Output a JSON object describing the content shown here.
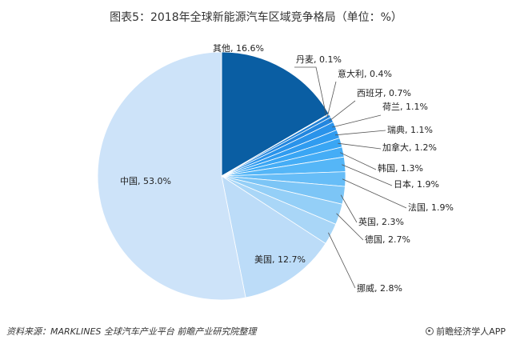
{
  "chart_data": {
    "type": "pie",
    "title": "图表5：2018年全球新能源汽车区域竞争格局（单位：%）",
    "unit": "%",
    "slices": [
      {
        "label": "其他",
        "value": 16.6,
        "color": "#0a5ea3"
      },
      {
        "label": "丹麦",
        "value": 0.1,
        "color": "#1e73c4"
      },
      {
        "label": "意大利",
        "value": 0.4,
        "color": "#1f80d6"
      },
      {
        "label": "西班牙",
        "value": 0.7,
        "color": "#2286df"
      },
      {
        "label": "荷兰",
        "value": 1.1,
        "color": "#2a93ea"
      },
      {
        "label": "瑞典",
        "value": 1.1,
        "color": "#309cf0"
      },
      {
        "label": "加拿大",
        "value": 1.2,
        "color": "#3aa6f4"
      },
      {
        "label": "韩国",
        "value": 1.3,
        "color": "#45adf6"
      },
      {
        "label": "日本",
        "value": 1.9,
        "color": "#55b6f7"
      },
      {
        "label": "法国",
        "value": 1.9,
        "color": "#67bdf7"
      },
      {
        "label": "英国",
        "value": 2.3,
        "color": "#7cc5f6"
      },
      {
        "label": "德国",
        "value": 2.7,
        "color": "#94cff7"
      },
      {
        "label": "挪威",
        "value": 2.8,
        "color": "#a9d6f7"
      },
      {
        "label": "美国",
        "value": 12.7,
        "color": "#bcdcf8"
      },
      {
        "label": "中国",
        "value": 53.0,
        "color": "#cde3f9"
      }
    ]
  },
  "footer": {
    "source": "资料来源：MARKLINES 全球汽车产业平台 前瞻产业研究院整理",
    "brand": "前瞻经济学人APP"
  }
}
